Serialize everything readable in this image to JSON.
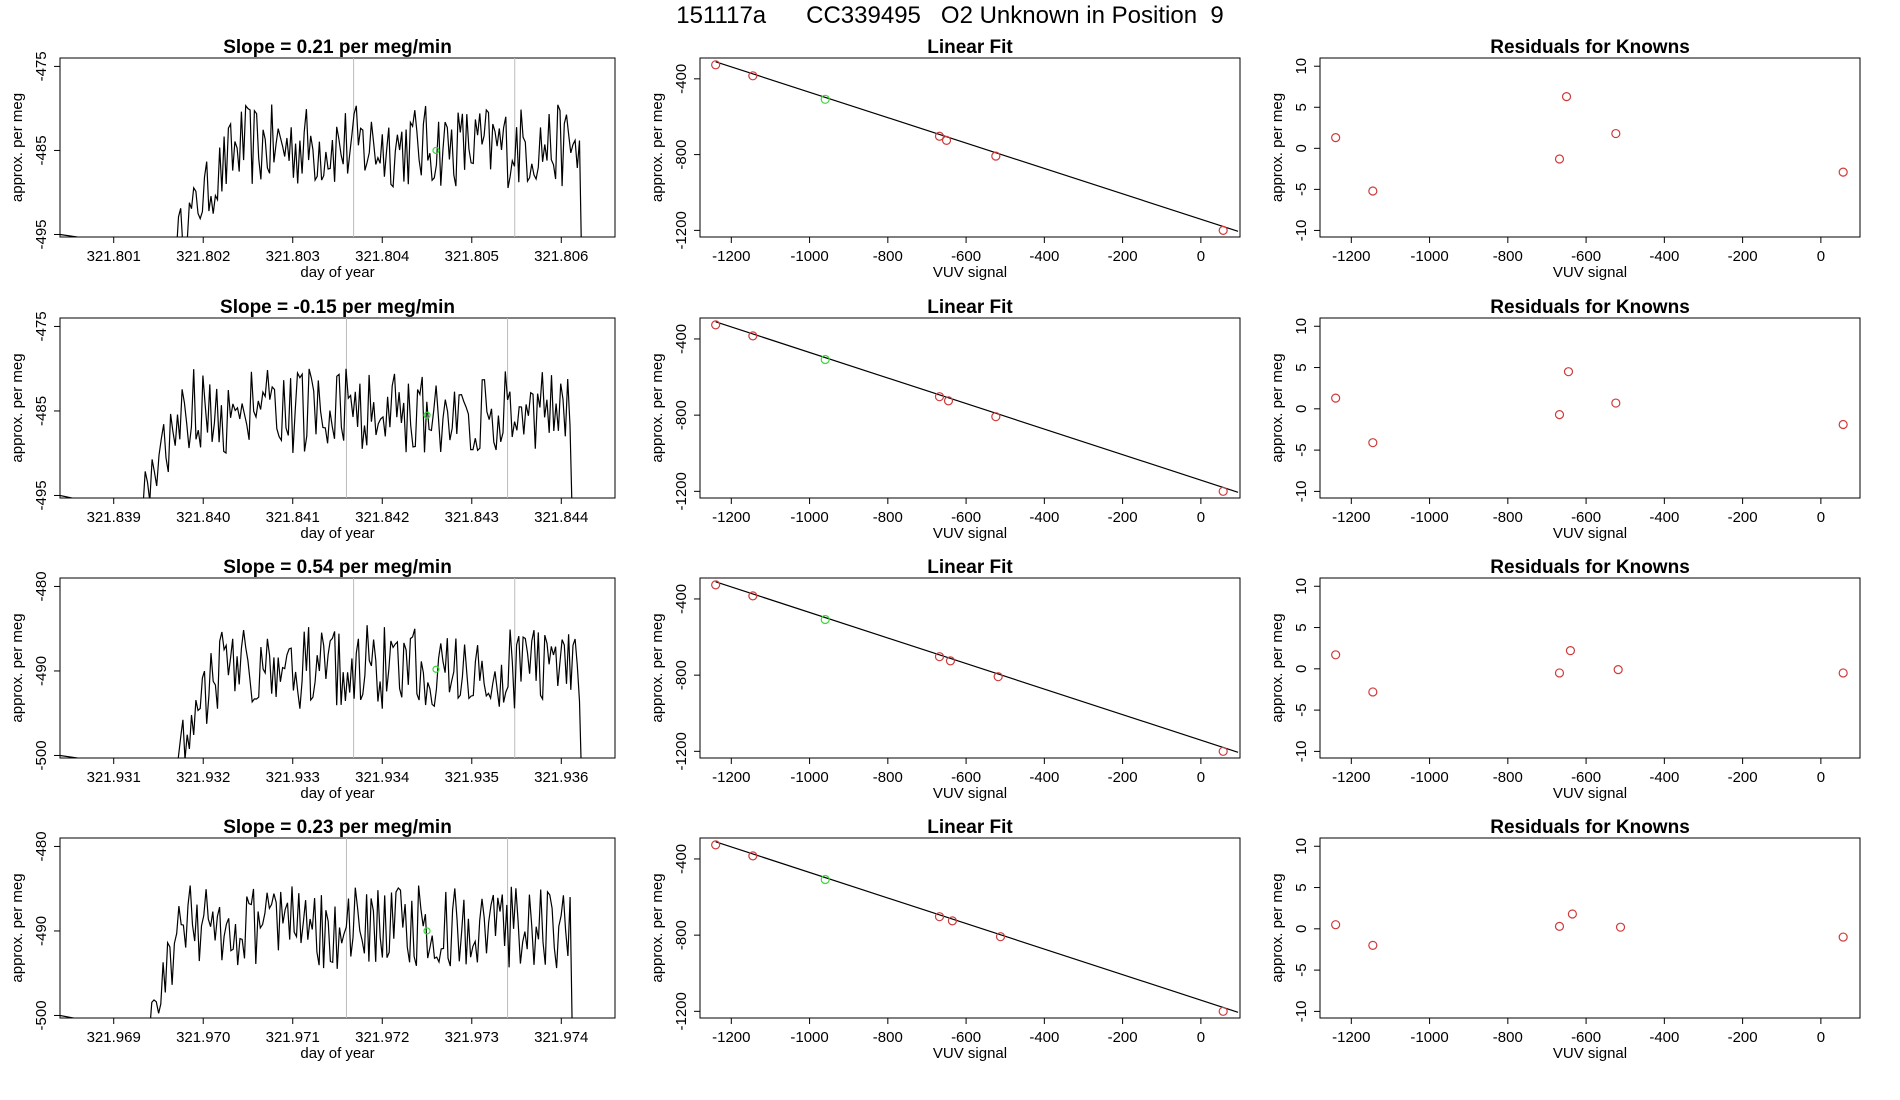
{
  "header": {
    "title": "151117a      CC339495   O2 Unknown in Position  9"
  },
  "style": {
    "trace_color": "#000000",
    "known_point_color": "#d03a3a",
    "unknown_point_color": "#33dd33",
    "marker_line_color": "#bbbbbb",
    "frame_color": "#000000"
  },
  "chart_data": [
    {
      "type": "line",
      "panel": "timeseries",
      "row": 0,
      "title": "Slope =  0.21  per meg/min",
      "xlabel": "day of year",
      "ylabel": "approx. per meg",
      "xlim": [
        321.8004,
        321.8066
      ],
      "ylim": [
        -495.3,
        -474.0
      ],
      "xticks": [
        "321.801",
        "321.802",
        "321.803",
        "321.804",
        "321.805",
        "321.806"
      ],
      "yticks": [
        "-475",
        "-485",
        "-495"
      ],
      "markers_x": [
        321.80368,
        321.80548
      ],
      "trace_start": 321.8017,
      "rise_start": 321.802,
      "trace_end": 321.8063,
      "level": -484.5,
      "amplitude": 5,
      "clip_min": -495,
      "unknown_point": {
        "x": 321.8046,
        "y": -485.0
      }
    },
    {
      "type": "scatter",
      "panel": "linear-fit",
      "row": 0,
      "title": "Linear Fit",
      "xlabel": "VUV signal",
      "ylabel": "approx. per meg",
      "xlim": [
        -1280,
        100
      ],
      "ylim": [
        -1235,
        -290
      ],
      "xticks": [
        "-1200",
        "-1000",
        "-800",
        "-600",
        "-400",
        "-200",
        "0"
      ],
      "yticks": [
        "-400",
        "-800",
        "-1200"
      ],
      "fit_line": {
        "x": [
          -1240,
          95
        ],
        "y": [
          -310,
          -1205
        ]
      },
      "known_points": {
        "x": [
          -1240,
          -1145,
          -668,
          -650,
          -524,
          57
        ],
        "y": [
          -326,
          -384,
          -703,
          -725,
          -808,
          -1200
        ]
      },
      "unknown_points": {
        "x": [
          -960
        ],
        "y": [
          -508
        ]
      }
    },
    {
      "type": "scatter",
      "panel": "residuals",
      "row": 0,
      "title": "Residuals for Knowns",
      "xlabel": "VUV signal",
      "ylabel": "approx. per meg",
      "xlim": [
        -1280,
        100
      ],
      "ylim": [
        -10.8,
        11
      ],
      "xticks": [
        "-1200",
        "-1000",
        "-800",
        "-600",
        "-400",
        "-200",
        "0"
      ],
      "yticks": [
        "10",
        "5",
        "0",
        "-5",
        "-10"
      ],
      "known_points": {
        "x": [
          -1240,
          -1145,
          -668,
          -650,
          -524,
          57
        ],
        "y": [
          1.3,
          -5.2,
          -1.3,
          6.3,
          1.8,
          -2.9
        ]
      }
    },
    {
      "type": "line",
      "panel": "timeseries",
      "row": 1,
      "title": "Slope =  -0.15  per meg/min",
      "xlabel": "day of year",
      "ylabel": "approx. per meg",
      "xlim": [
        321.8384,
        321.8446
      ],
      "ylim": [
        -495.3,
        -474.0
      ],
      "xticks": [
        "321.839",
        "321.840",
        "321.841",
        "321.842",
        "321.843",
        "321.844"
      ],
      "yticks": [
        "-475",
        "-485",
        "-495"
      ],
      "markers_x": [
        321.8416,
        321.8434
      ],
      "trace_start": 321.8393,
      "rise_start": 321.8394,
      "trace_end": 321.8442,
      "level": -485,
      "amplitude": 5,
      "clip_min": -495,
      "unknown_point": {
        "x": 321.8425,
        "y": -485.5
      }
    },
    {
      "type": "scatter",
      "panel": "linear-fit",
      "row": 1,
      "title": "Linear Fit",
      "xlabel": "VUV signal",
      "ylabel": "approx. per meg",
      "xlim": [
        -1280,
        100
      ],
      "ylim": [
        -1235,
        -290
      ],
      "xticks": [
        "-1200",
        "-1000",
        "-800",
        "-600",
        "-400",
        "-200",
        "0"
      ],
      "yticks": [
        "-400",
        "-800",
        "-1200"
      ],
      "fit_line": {
        "x": [
          -1240,
          95
        ],
        "y": [
          -310,
          -1205
        ]
      },
      "known_points": {
        "x": [
          -1240,
          -1145,
          -668,
          -645,
          -524,
          57
        ],
        "y": [
          -326,
          -384,
          -703,
          -725,
          -808,
          -1200
        ]
      },
      "unknown_points": {
        "x": [
          -960
        ],
        "y": [
          -508
        ]
      }
    },
    {
      "type": "scatter",
      "panel": "residuals",
      "row": 1,
      "title": "Residuals for Knowns",
      "xlabel": "VUV signal",
      "ylabel": "approx. per meg",
      "xlim": [
        -1280,
        100
      ],
      "ylim": [
        -10.8,
        11
      ],
      "xticks": [
        "-1200",
        "-1000",
        "-800",
        "-600",
        "-400",
        "-200",
        "0"
      ],
      "yticks": [
        "10",
        "5",
        "0",
        "-5",
        "-10"
      ],
      "known_points": {
        "x": [
          -1240,
          -1145,
          -668,
          -645,
          -524,
          57
        ],
        "y": [
          1.3,
          -4.1,
          -0.7,
          4.5,
          0.7,
          -1.9
        ]
      }
    },
    {
      "type": "line",
      "panel": "timeseries",
      "row": 2,
      "title": "Slope =  0.54  per meg/min",
      "xlabel": "day of year",
      "ylabel": "approx. per meg",
      "xlim": [
        321.9304,
        321.9366
      ],
      "ylim": [
        -500.3,
        -479.0
      ],
      "xticks": [
        "321.931",
        "321.932",
        "321.933",
        "321.934",
        "321.935",
        "321.936"
      ],
      "yticks": [
        "-480",
        "-490",
        "-500"
      ],
      "markers_x": [
        321.93368,
        321.93548
      ],
      "trace_start": 321.9317,
      "rise_start": 321.9318,
      "trace_end": 321.9363,
      "level": -489.5,
      "amplitude": 5,
      "clip_min": -500,
      "unknown_point": {
        "x": 321.9346,
        "y": -489.8
      }
    },
    {
      "type": "scatter",
      "panel": "linear-fit",
      "row": 2,
      "title": "Linear Fit",
      "xlabel": "VUV signal",
      "ylabel": "approx. per meg",
      "xlim": [
        -1280,
        100
      ],
      "ylim": [
        -1235,
        -290
      ],
      "xticks": [
        "-1200",
        "-1000",
        "-800",
        "-600",
        "-400",
        "-200",
        "0"
      ],
      "yticks": [
        "-400",
        "-800",
        "-1200"
      ],
      "fit_line": {
        "x": [
          -1240,
          95
        ],
        "y": [
          -310,
          -1205
        ]
      },
      "known_points": {
        "x": [
          -1240,
          -1145,
          -668,
          -640,
          -518,
          57
        ],
        "y": [
          -326,
          -384,
          -703,
          -725,
          -808,
          -1200
        ]
      },
      "unknown_points": {
        "x": [
          -960
        ],
        "y": [
          -508
        ]
      }
    },
    {
      "type": "scatter",
      "panel": "residuals",
      "row": 2,
      "title": "Residuals for Knowns",
      "xlabel": "VUV signal",
      "ylabel": "approx. per meg",
      "xlim": [
        -1280,
        100
      ],
      "ylim": [
        -10.8,
        11
      ],
      "xticks": [
        "-1200",
        "-1000",
        "-800",
        "-600",
        "-400",
        "-200",
        "0"
      ],
      "yticks": [
        "10",
        "5",
        "0",
        "-5",
        "-10"
      ],
      "known_points": {
        "x": [
          -1240,
          -1145,
          -668,
          -640,
          -518,
          57
        ],
        "y": [
          1.7,
          -2.8,
          -0.5,
          2.2,
          -0.1,
          -0.5
        ]
      }
    },
    {
      "type": "line",
      "panel": "timeseries",
      "row": 3,
      "title": "Slope =  0.23  per meg/min",
      "xlabel": "day of year",
      "ylabel": "approx. per meg",
      "xlim": [
        321.9684,
        321.9746
      ],
      "ylim": [
        -500.3,
        -479.0
      ],
      "xticks": [
        "321.969",
        "321.970",
        "321.971",
        "321.972",
        "321.973",
        "321.974"
      ],
      "yticks": [
        "-480",
        "-490",
        "-500"
      ],
      "markers_x": [
        321.9716,
        321.9734
      ],
      "trace_start": 321.9694,
      "rise_start": 321.9694,
      "trace_end": 321.9742,
      "level": -489.5,
      "amplitude": 5,
      "clip_min": -500,
      "unknown_point": {
        "x": 321.9725,
        "y": -490.0
      }
    },
    {
      "type": "scatter",
      "panel": "linear-fit",
      "row": 3,
      "title": "Linear Fit",
      "xlabel": "VUV signal",
      "ylabel": "approx. per meg",
      "xlim": [
        -1280,
        100
      ],
      "ylim": [
        -1235,
        -290
      ],
      "xticks": [
        "-1200",
        "-1000",
        "-800",
        "-600",
        "-400",
        "-200",
        "0"
      ],
      "yticks": [
        "-400",
        "-800",
        "-1200"
      ],
      "fit_line": {
        "x": [
          -1240,
          95
        ],
        "y": [
          -310,
          -1205
        ]
      },
      "known_points": {
        "x": [
          -1240,
          -1145,
          -668,
          -635,
          -512,
          57
        ],
        "y": [
          -326,
          -384,
          -703,
          -725,
          -808,
          -1200
        ]
      },
      "unknown_points": {
        "x": [
          -960
        ],
        "y": [
          -508
        ]
      }
    },
    {
      "type": "scatter",
      "panel": "residuals",
      "row": 3,
      "title": "Residuals for Knowns",
      "xlabel": "VUV signal",
      "ylabel": "approx. per meg",
      "xlim": [
        -1280,
        100
      ],
      "ylim": [
        -10.8,
        11
      ],
      "xticks": [
        "-1200",
        "-1000",
        "-800",
        "-600",
        "-400",
        "-200",
        "0"
      ],
      "yticks": [
        "10",
        "5",
        "0",
        "-5",
        "-10"
      ],
      "known_points": {
        "x": [
          -1240,
          -1145,
          -668,
          -635,
          -512,
          57
        ],
        "y": [
          0.5,
          -2.0,
          0.3,
          1.8,
          0.2,
          -1.0
        ]
      }
    }
  ]
}
